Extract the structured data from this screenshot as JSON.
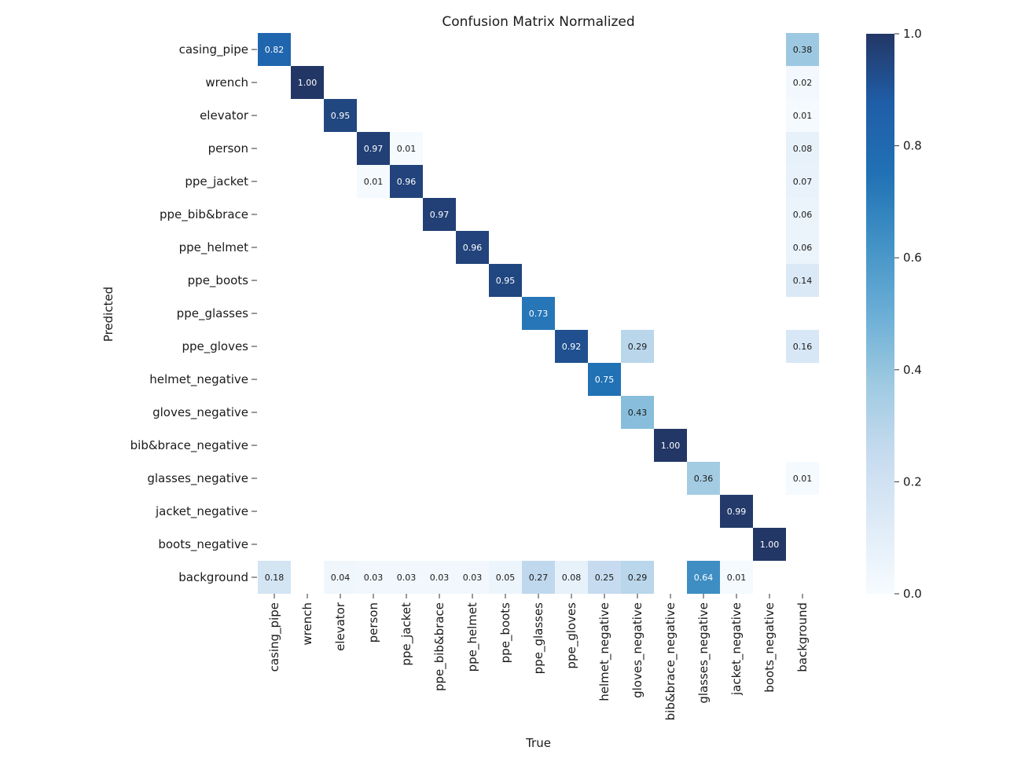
{
  "chart_data": {
    "type": "heatmap",
    "title": "Confusion Matrix Normalized",
    "xlabel": "True",
    "ylabel": "Predicted",
    "colormap": "Blues",
    "vlim": [
      0,
      1
    ],
    "colorbar_ticks": [
      "0.0",
      "0.2",
      "0.4",
      "0.6",
      "0.8",
      "1.0"
    ],
    "colorbar_tick_values": [
      0,
      0.2,
      0.4,
      0.6,
      0.8,
      1.0
    ],
    "categories": [
      "casing_pipe",
      "wrench",
      "elevator",
      "person",
      "ppe_jacket",
      "ppe_bib&brace",
      "ppe_helmet",
      "ppe_boots",
      "ppe_glasses",
      "ppe_gloves",
      "helmet_negative",
      "gloves_negative",
      "bib&brace_negative",
      "glasses_negative",
      "jacket_negative",
      "boots_negative",
      "background"
    ],
    "cells": [
      {
        "row": 0,
        "col": 0,
        "value": 0.82,
        "label": "0.82"
      },
      {
        "row": 0,
        "col": 16,
        "value": 0.38,
        "label": "0.38"
      },
      {
        "row": 1,
        "col": 1,
        "value": 1.0,
        "label": "1.00"
      },
      {
        "row": 1,
        "col": 16,
        "value": 0.02,
        "label": "0.02"
      },
      {
        "row": 2,
        "col": 2,
        "value": 0.95,
        "label": "0.95"
      },
      {
        "row": 2,
        "col": 16,
        "value": 0.01,
        "label": "0.01"
      },
      {
        "row": 3,
        "col": 3,
        "value": 0.97,
        "label": "0.97"
      },
      {
        "row": 3,
        "col": 4,
        "value": 0.01,
        "label": "0.01"
      },
      {
        "row": 3,
        "col": 16,
        "value": 0.08,
        "label": "0.08"
      },
      {
        "row": 4,
        "col": 3,
        "value": 0.01,
        "label": "0.01"
      },
      {
        "row": 4,
        "col": 4,
        "value": 0.96,
        "label": "0.96"
      },
      {
        "row": 4,
        "col": 16,
        "value": 0.07,
        "label": "0.07"
      },
      {
        "row": 5,
        "col": 5,
        "value": 0.97,
        "label": "0.97"
      },
      {
        "row": 5,
        "col": 16,
        "value": 0.06,
        "label": "0.06"
      },
      {
        "row": 6,
        "col": 6,
        "value": 0.96,
        "label": "0.96"
      },
      {
        "row": 6,
        "col": 16,
        "value": 0.06,
        "label": "0.06"
      },
      {
        "row": 7,
        "col": 7,
        "value": 0.95,
        "label": "0.95"
      },
      {
        "row": 7,
        "col": 16,
        "value": 0.14,
        "label": "0.14"
      },
      {
        "row": 8,
        "col": 8,
        "value": 0.73,
        "label": "0.73"
      },
      {
        "row": 9,
        "col": 9,
        "value": 0.92,
        "label": "0.92"
      },
      {
        "row": 9,
        "col": 11,
        "value": 0.29,
        "label": "0.29"
      },
      {
        "row": 9,
        "col": 16,
        "value": 0.16,
        "label": "0.16"
      },
      {
        "row": 10,
        "col": 10,
        "value": 0.75,
        "label": "0.75"
      },
      {
        "row": 11,
        "col": 11,
        "value": 0.43,
        "label": "0.43"
      },
      {
        "row": 12,
        "col": 12,
        "value": 1.0,
        "label": "1.00"
      },
      {
        "row": 13,
        "col": 13,
        "value": 0.36,
        "label": "0.36"
      },
      {
        "row": 13,
        "col": 16,
        "value": 0.01,
        "label": "0.01"
      },
      {
        "row": 14,
        "col": 14,
        "value": 0.99,
        "label": "0.99"
      },
      {
        "row": 15,
        "col": 15,
        "value": 1.0,
        "label": "1.00"
      },
      {
        "row": 16,
        "col": 0,
        "value": 0.18,
        "label": "0.18"
      },
      {
        "row": 16,
        "col": 2,
        "value": 0.04,
        "label": "0.04"
      },
      {
        "row": 16,
        "col": 3,
        "value": 0.03,
        "label": "0.03"
      },
      {
        "row": 16,
        "col": 4,
        "value": 0.03,
        "label": "0.03"
      },
      {
        "row": 16,
        "col": 5,
        "value": 0.03,
        "label": "0.03"
      },
      {
        "row": 16,
        "col": 6,
        "value": 0.03,
        "label": "0.03"
      },
      {
        "row": 16,
        "col": 7,
        "value": 0.05,
        "label": "0.05"
      },
      {
        "row": 16,
        "col": 8,
        "value": 0.27,
        "label": "0.27"
      },
      {
        "row": 16,
        "col": 9,
        "value": 0.08,
        "label": "0.08"
      },
      {
        "row": 16,
        "col": 10,
        "value": 0.25,
        "label": "0.25"
      },
      {
        "row": 16,
        "col": 11,
        "value": 0.29,
        "label": "0.29"
      },
      {
        "row": 16,
        "col": 13,
        "value": 0.64,
        "label": "0.64"
      },
      {
        "row": 16,
        "col": 14,
        "value": 0.01,
        "label": "0.01"
      }
    ]
  }
}
